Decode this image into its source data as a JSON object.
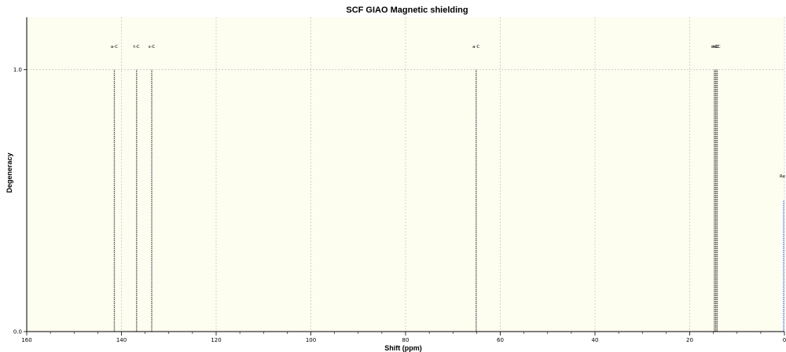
{
  "chart_data": {
    "type": "bar",
    "title": "SCF GIAO Magnetic shielding",
    "xlabel": "Shift (ppm)",
    "ylabel": "Degeneracy",
    "xlim": [
      160,
      0
    ],
    "ylim": [
      0,
      1.2
    ],
    "x_ticks": [
      "160",
      "140",
      "120",
      "100",
      "80",
      "60",
      "40",
      "20",
      "0"
    ],
    "x_tick_values": [
      160,
      140,
      120,
      100,
      80,
      60,
      40,
      20,
      0
    ],
    "y_ticks": [
      "0.0",
      "1.0"
    ],
    "y_tick_values": [
      0,
      1
    ],
    "grid": true,
    "background": "#fdfdf0",
    "grid_color": "#c8c8c8",
    "peak_color": "#555555",
    "reference_color": "#4a6cf0",
    "peaks": [
      {
        "label": "a-C",
        "shift": 141.5,
        "degeneracy": 1
      },
      {
        "label": "t-C",
        "shift": 136.8,
        "degeneracy": 1
      },
      {
        "label": "s-C",
        "shift": 133.6,
        "degeneracy": 1
      },
      {
        "label": "a-C",
        "shift": 65.1,
        "degeneracy": 1
      },
      {
        "label": "s-C",
        "shift": 14.8,
        "degeneracy": 1
      },
      {
        "label": "t-C",
        "shift": 14.5,
        "degeneracy": 1
      },
      {
        "label": "s-C",
        "shift": 14.2,
        "degeneracy": 1
      }
    ],
    "reference": {
      "label": "Re",
      "shift": 0,
      "degeneracy": 0.5
    }
  }
}
